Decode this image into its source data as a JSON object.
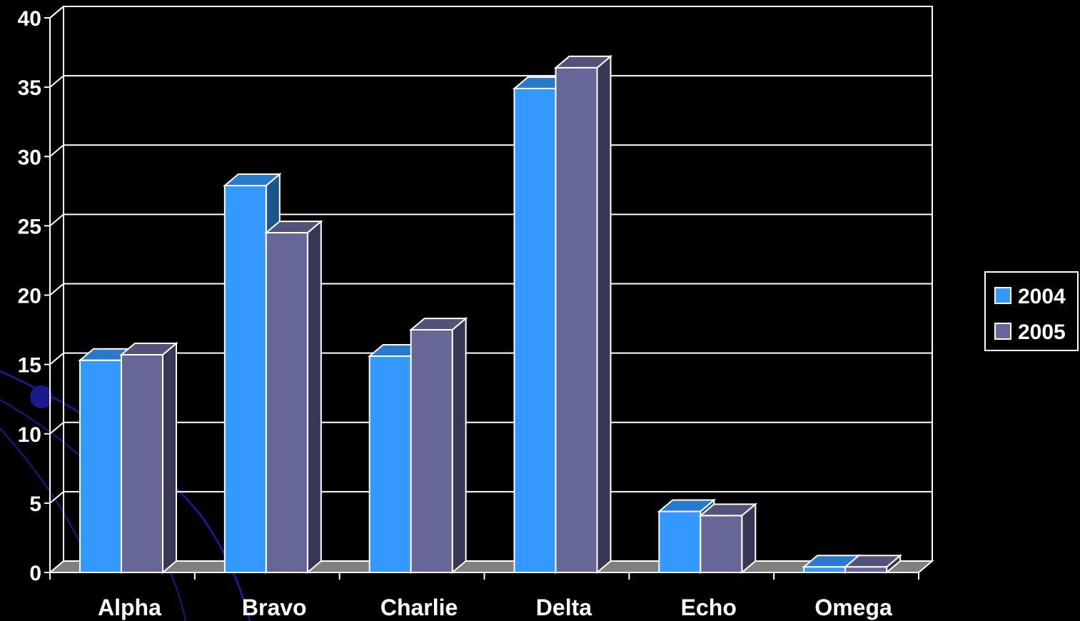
{
  "chart_data": {
    "type": "bar",
    "style": "3d-clustered-column",
    "categories": [
      "Alpha",
      "Bravo",
      "Charlie",
      "Delta",
      "Echo",
      "Omega"
    ],
    "series": [
      {
        "name": "2004",
        "values": [
          15.3,
          27.9,
          15.6,
          34.9,
          4.4,
          0.4
        ],
        "color": "#3399ff"
      },
      {
        "name": "2005",
        "values": [
          15.7,
          24.5,
          17.5,
          36.4,
          4.1,
          0.4
        ],
        "color": "#666699"
      }
    ],
    "ylim": [
      0,
      40
    ],
    "yticks": [
      "0",
      "5",
      "10",
      "15",
      "20",
      "25",
      "30",
      "35",
      "40"
    ],
    "grid": true,
    "legend_position": "right",
    "colors": {
      "background": "#000000",
      "grid": "#ffffff",
      "floor": "#808080",
      "decor_blue": "#1a1a8c"
    }
  }
}
